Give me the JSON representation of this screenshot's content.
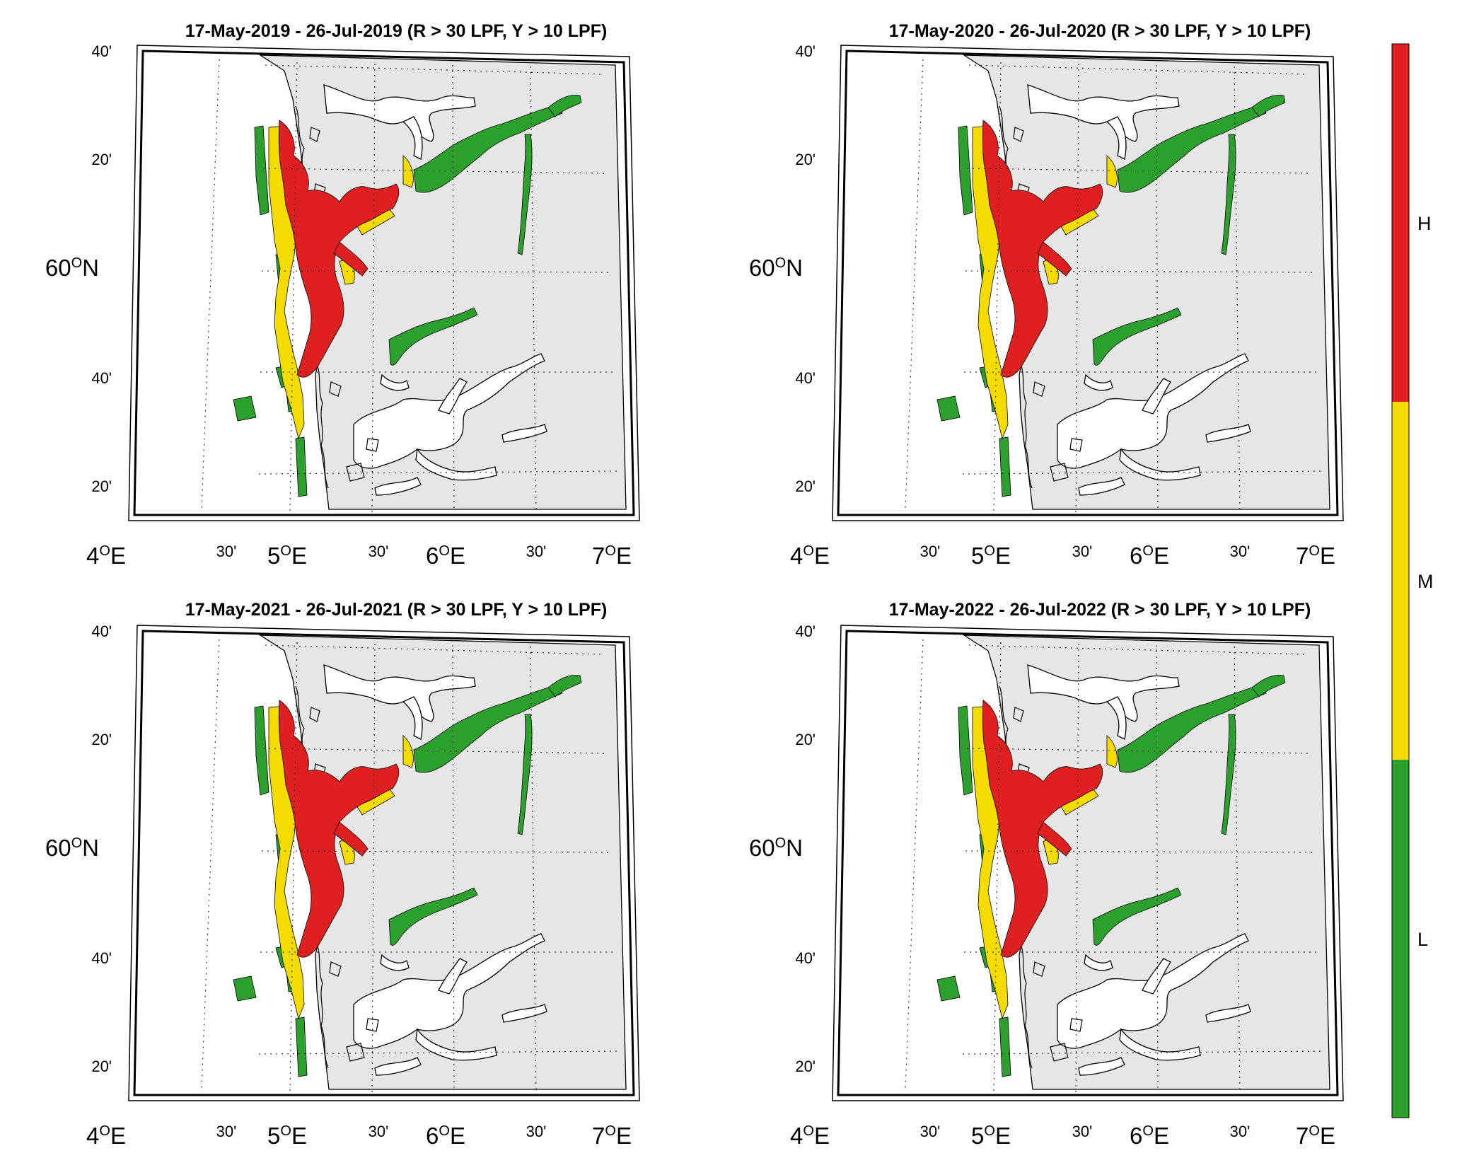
{
  "panels": [
    {
      "title": "17-May-2019  - 26-Jul-2019  (R > 30 LPF, Y > 10 LPF)"
    },
    {
      "title": "17-May-2020  - 26-Jul-2020  (R > 30 LPF, Y > 10 LPF)"
    },
    {
      "title": "17-May-2021  - 26-Jul-2021  (R > 30 LPF, Y > 10 LPF)"
    },
    {
      "title": "17-May-2022  - 26-Jul-2022  (R > 30 LPF, Y > 10 LPF)"
    }
  ],
  "axes": {
    "lat_labels": [
      "40'",
      "20'",
      "60",
      "40'",
      "20'"
    ],
    "lat_main_unit": "N",
    "lon_labels": [
      "4",
      "30'",
      "5",
      "30'",
      "6",
      "30'",
      "7"
    ],
    "lon_main_unit": "E",
    "degree_mark": "O",
    "grid": true,
    "grid_style": "dotted"
  },
  "colorbar": {
    "categories": [
      "L",
      "M",
      "H"
    ],
    "colors": {
      "L": "#2ca02c",
      "M": "#f5dc00",
      "H": "#e02020"
    }
  },
  "colors": {
    "land": "#e6e6e6",
    "sea": "#ffffff",
    "coastline": "#000000",
    "high": "#e02020",
    "medium": "#f5dc00",
    "low": "#2ca02c"
  }
}
